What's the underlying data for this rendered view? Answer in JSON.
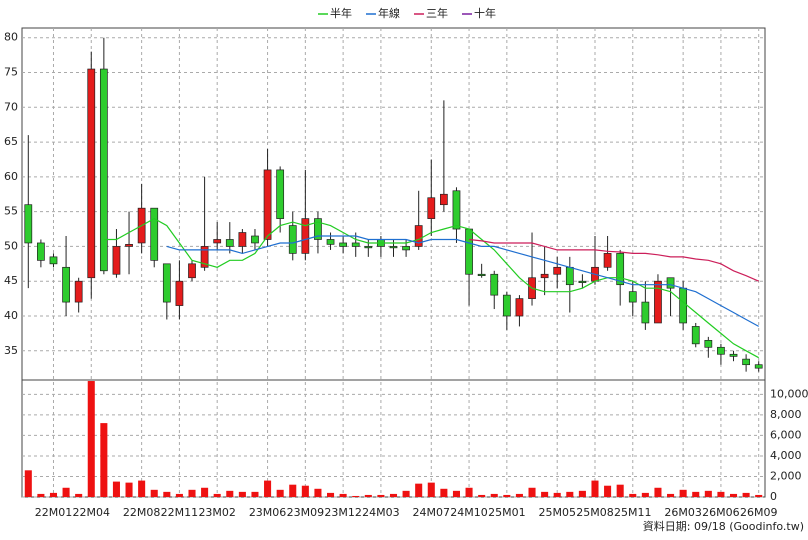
{
  "chart_data": [
    {
      "type": "candlestick",
      "categories": [
        null,
        null,
        "22M01",
        null,
        null,
        "22M04",
        null,
        null,
        null,
        "22M08",
        null,
        null,
        "22M11",
        null,
        null,
        "23M02",
        null,
        null,
        null,
        "23M06",
        null,
        null,
        "23M09",
        null,
        null,
        "23M12",
        null,
        null,
        "24M03",
        null,
        null,
        null,
        "24M07",
        null,
        null,
        "24M10",
        null,
        null,
        "25M01",
        null,
        null,
        null,
        "25M05",
        null,
        null,
        "25M08",
        null,
        null,
        "25M11",
        null,
        null,
        null,
        "26M03",
        null,
        null,
        "26M06",
        null,
        null,
        "26M09"
      ],
      "open": [
        56,
        50.5,
        48.5,
        47,
        42,
        45.5,
        75.5,
        46,
        50,
        50.5,
        55.5,
        47.5,
        41.5,
        45.5,
        47,
        50.5,
        51,
        50,
        51.5,
        51,
        61,
        53,
        49,
        54,
        51,
        50.5,
        50.5,
        50,
        51,
        50,
        50,
        50,
        54,
        56,
        58,
        52.5,
        46,
        46,
        43,
        40,
        42.5,
        45.5,
        46,
        47,
        45,
        45,
        47,
        49,
        43.5,
        42,
        39,
        45.5,
        44,
        38.5,
        36.5,
        35.5,
        34.5,
        33.8,
        33
      ],
      "high": [
        66,
        51,
        49,
        51.5,
        45.5,
        78,
        80,
        52.5,
        55,
        59,
        55.5,
        47.5,
        48,
        48,
        60,
        53.5,
        53.5,
        52.5,
        52.5,
        64,
        61.5,
        55,
        61,
        55,
        52,
        51.5,
        52,
        51,
        51.5,
        51,
        51,
        58,
        62.5,
        71,
        58.5,
        52.5,
        47.5,
        46.5,
        43.5,
        43,
        52,
        50,
        48.5,
        48.5,
        46,
        51.5,
        51.5,
        49.5,
        45,
        45,
        46,
        45.5,
        45,
        39,
        37,
        36,
        35,
        34.5,
        33.5
      ],
      "low": [
        44,
        47,
        47,
        40,
        40.5,
        42.5,
        46,
        45.5,
        46,
        49,
        47,
        39.5,
        39.5,
        45,
        46.5,
        49.5,
        49,
        49,
        49.5,
        50,
        52,
        48,
        48,
        49,
        49.5,
        49,
        48.5,
        48.5,
        48.5,
        48.5,
        48.5,
        49.5,
        51.5,
        55,
        50.5,
        41.5,
        45.5,
        41,
        38,
        38.5,
        41.5,
        43,
        44,
        40.5,
        44,
        44.5,
        46.5,
        41.5,
        40,
        38,
        39,
        40,
        38,
        35.5,
        34,
        33,
        33.5,
        32,
        32
      ],
      "close": [
        50.5,
        48,
        47.5,
        42,
        45,
        75.5,
        46.5,
        50,
        50.3,
        55.5,
        48,
        42,
        45,
        47.5,
        50,
        51,
        50,
        52,
        50.5,
        61,
        54,
        49,
        54,
        51,
        50.3,
        50,
        50,
        49.8,
        50,
        49.8,
        49.5,
        53,
        57,
        57.5,
        52.5,
        46,
        45.8,
        43,
        40,
        42.5,
        45.5,
        46,
        47,
        44.5,
        44.8,
        47,
        49,
        44.5,
        42,
        39,
        45,
        44,
        39,
        36,
        35.5,
        34.5,
        34.2,
        33,
        32.5
      ],
      "up_color": "#e41c1c",
      "down_color": "#2ecc2e",
      "series": [
        {
          "name": "半年",
          "color": "#22cc22",
          "values": [
            null,
            null,
            null,
            null,
            null,
            null,
            51,
            51,
            52,
            53,
            54,
            53,
            50.5,
            48,
            47.5,
            47,
            48,
            48,
            49,
            51.5,
            53,
            53.5,
            53,
            53.5,
            53,
            52,
            51,
            50.5,
            50.5,
            50.5,
            50.5,
            51,
            52,
            52.5,
            53,
            52.5,
            51,
            49.5,
            47.5,
            45.5,
            44,
            43.5,
            43.5,
            43.5,
            44,
            45,
            45.5,
            45.5,
            45,
            44,
            44,
            43.5,
            42,
            40.5,
            39,
            37.5,
            36,
            35,
            34
          ]
        },
        {
          "name": "年線",
          "color": "#1f6fd0",
          "values": [
            null,
            null,
            null,
            null,
            null,
            null,
            null,
            null,
            null,
            null,
            null,
            50,
            49.5,
            49.5,
            49.5,
            49.5,
            49.5,
            49,
            49.5,
            50,
            50.5,
            50.5,
            51,
            51.5,
            51.5,
            51.5,
            51.5,
            51,
            51,
            51,
            51,
            50.5,
            51,
            51,
            51,
            50.5,
            50,
            50,
            49.5,
            49,
            48.5,
            48,
            47.5,
            47,
            46.5,
            46,
            45.5,
            45,
            44.5,
            44.5,
            44.5,
            44.5,
            44,
            43.5,
            42.5,
            41.5,
            40.5,
            39.5,
            38.5
          ]
        },
        {
          "name": "三年",
          "color": "#cc1f5a",
          "values": [
            null,
            null,
            null,
            null,
            null,
            null,
            null,
            null,
            null,
            null,
            null,
            null,
            null,
            null,
            null,
            null,
            null,
            null,
            null,
            null,
            null,
            null,
            null,
            null,
            null,
            null,
            null,
            null,
            null,
            null,
            null,
            null,
            null,
            null,
            null,
            51,
            50.8,
            50.5,
            50.5,
            50.5,
            50.5,
            50,
            49.5,
            49.5,
            49.5,
            49.5,
            49.3,
            49.2,
            49,
            49,
            48.8,
            48.5,
            48.5,
            48.2,
            48,
            47.5,
            46.5,
            45.8,
            45
          ]
        },
        {
          "name": "十年",
          "color": "#7a1fa0",
          "values": [
            null,
            null,
            null,
            null,
            null,
            null,
            null,
            null,
            null,
            null,
            null,
            null,
            null,
            null,
            null,
            null,
            null,
            null,
            null,
            null,
            null,
            null,
            null,
            null,
            null,
            null,
            null,
            null,
            null,
            null,
            null,
            null,
            null,
            null,
            null,
            null,
            null,
            null,
            null,
            null,
            null,
            null,
            null,
            null,
            null,
            null,
            null,
            null,
            null,
            null,
            null,
            null,
            null,
            null,
            null,
            null,
            null,
            null,
            null
          ]
        }
      ],
      "ylim": [
        30.8,
        81.4
      ],
      "yticks": [
        35,
        40,
        45,
        50,
        55,
        60,
        65,
        70,
        75,
        80
      ],
      "grid": true
    },
    {
      "type": "bar",
      "color": "#ee1111",
      "values": [
        2600,
        300,
        400,
        900,
        300,
        11300,
        7200,
        1500,
        1400,
        1600,
        700,
        500,
        300,
        700,
        900,
        300,
        600,
        500,
        500,
        1600,
        700,
        1200,
        1100,
        800,
        400,
        300,
        100,
        200,
        200,
        300,
        600,
        1300,
        1400,
        800,
        600,
        900,
        200,
        300,
        200,
        300,
        900,
        500,
        400,
        500,
        600,
        1600,
        1100,
        1200,
        300,
        400,
        900,
        300,
        700,
        500,
        600,
        500,
        300,
        400,
        200
      ],
      "ylim": [
        0,
        11400
      ],
      "yticks": [
        0,
        {
          "value": 2000,
          "label": "2,000"
        },
        {
          "value": 4000,
          "label": "4,000"
        },
        {
          "value": 6000,
          "label": "6,000"
        },
        {
          "value": 8000,
          "label": "8,000"
        },
        {
          "value": 10000,
          "label": "10,000"
        }
      ],
      "grid": true,
      "source": "資料日期: 09/18  (Goodinfo.tw)"
    }
  ]
}
